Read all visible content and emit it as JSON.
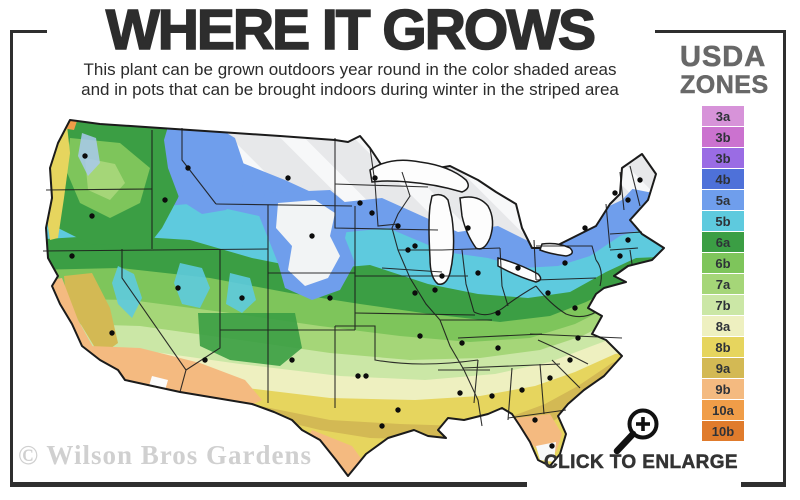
{
  "header": {
    "title": "WHERE IT GROWS",
    "subtitle_line1": "This plant can be grown outdoors year round in the color shaded areas",
    "subtitle_line2": "and in pots that can be brought indoors during winter in the striped area"
  },
  "legend": {
    "heading_line1": "USDA",
    "heading_line2": "ZONES",
    "zones": [
      {
        "label": "3a",
        "color": "#d793d9"
      },
      {
        "label": "3b",
        "color": "#cb72cf"
      },
      {
        "label": "3b",
        "color": "#9a6ce4"
      },
      {
        "label": "4b",
        "color": "#4e71d9"
      },
      {
        "label": "5a",
        "color": "#6f9eec"
      },
      {
        "label": "5b",
        "color": "#5ecade"
      },
      {
        "label": "6a",
        "color": "#3b9e44"
      },
      {
        "label": "6b",
        "color": "#7ec55b"
      },
      {
        "label": "7a",
        "color": "#a5d678"
      },
      {
        "label": "7b",
        "color": "#cbe7a6"
      },
      {
        "label": "8a",
        "color": "#eef0c0"
      },
      {
        "label": "8b",
        "color": "#e6d55e"
      },
      {
        "label": "9a",
        "color": "#d3b954"
      },
      {
        "label": "9b",
        "color": "#f4ba80"
      },
      {
        "label": "10a",
        "color": "#f09d48"
      },
      {
        "label": "10b",
        "color": "#e07b2c"
      }
    ]
  },
  "map": {
    "watermark": "© Wilson Bros Gardens"
  },
  "footer": {
    "enlarge_label": "CLICK TO ENLARGE"
  },
  "colors": {
    "frame": "#2f2f2f",
    "striped_area_base": "#e7e8ea",
    "stripe": "#f7f8f9"
  }
}
